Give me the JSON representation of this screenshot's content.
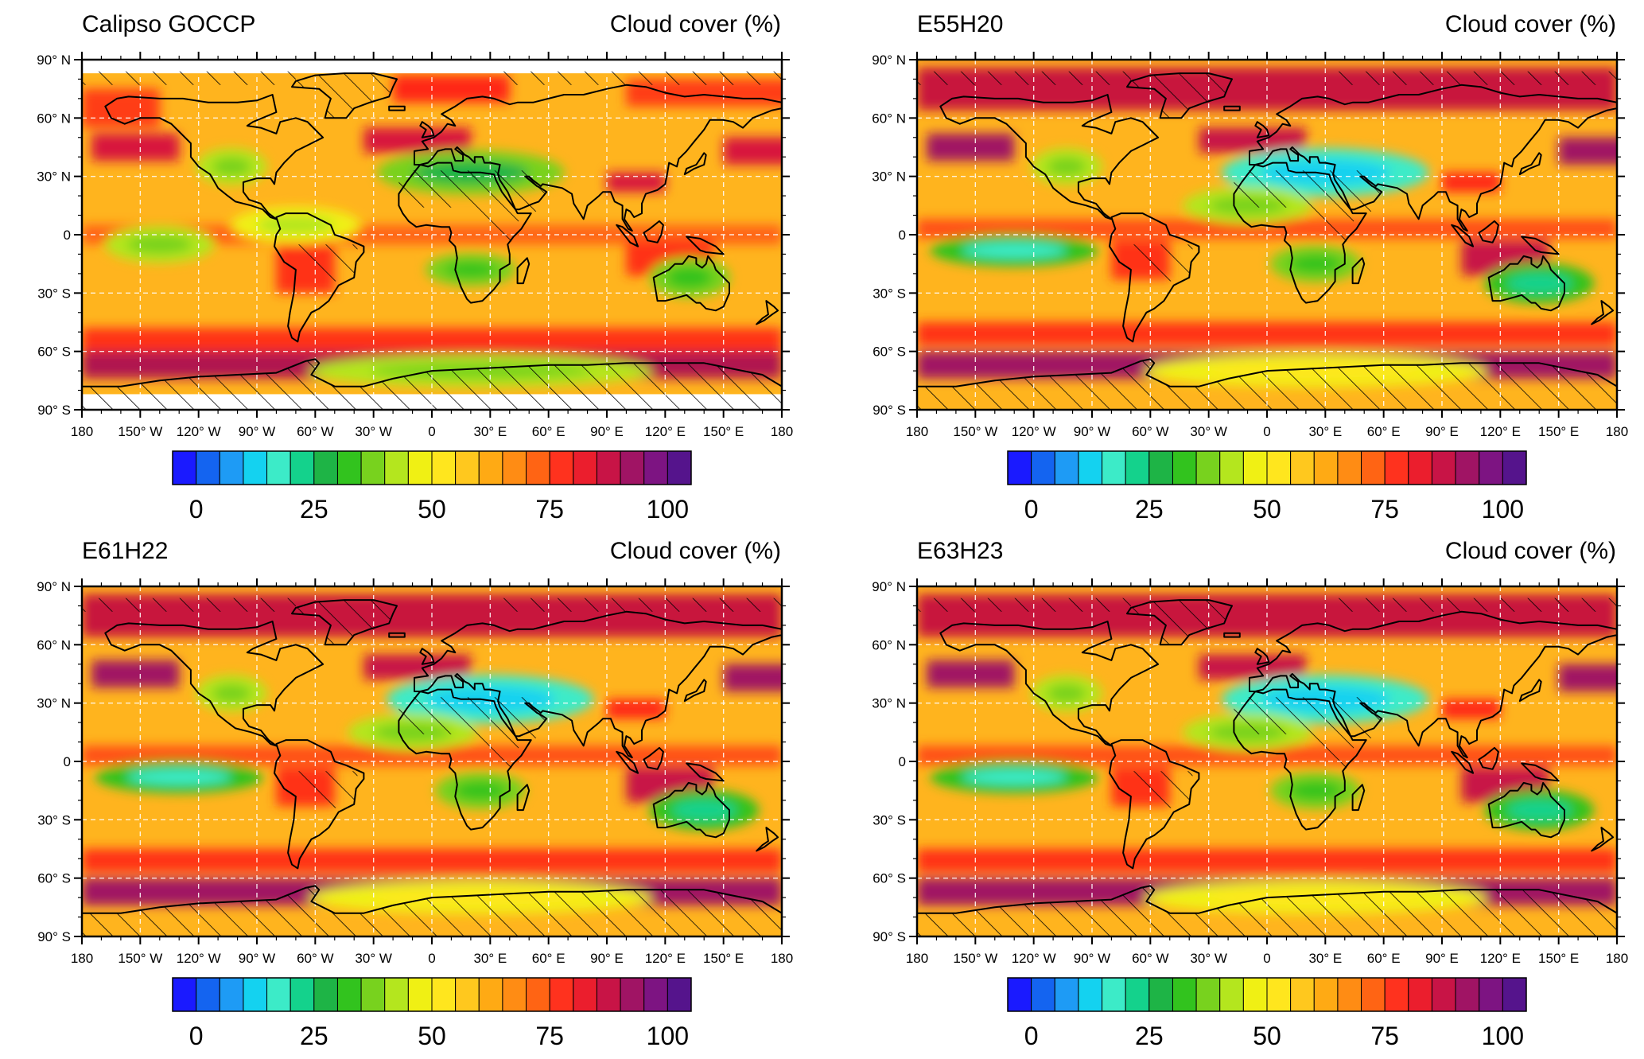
{
  "figure": {
    "units_label": "Cloud cover (%)",
    "panels": [
      {
        "id": "calipso",
        "title": "Calipso GOCCP"
      },
      {
        "id": "e55h20",
        "title": "E55H20"
      },
      {
        "id": "e61h22",
        "title": "E61H22"
      },
      {
        "id": "e63h23",
        "title": "E63H23"
      }
    ],
    "lat_ticks": [
      "90° N",
      "60° N",
      "30° N",
      "0",
      "30° S",
      "60° S",
      "90° S"
    ],
    "lon_ticks": [
      "180",
      "150° W",
      "120° W",
      "90° W",
      "60° W",
      "30° W",
      "0",
      "30° E",
      "60° E",
      "90° E",
      "120° E",
      "150° E",
      "180"
    ],
    "colorbar": {
      "labels": [
        "0",
        "25",
        "50",
        "75",
        "100"
      ],
      "label_values": [
        0,
        25,
        50,
        75,
        100
      ],
      "range": [
        -5,
        105
      ],
      "colors": [
        "#1a1aff",
        "#1464f0",
        "#1e9bf5",
        "#14d2f0",
        "#3cebc8",
        "#14d28c",
        "#1eb446",
        "#32c31e",
        "#78d21e",
        "#b4e61e",
        "#f0f014",
        "#ffe61e",
        "#ffc81e",
        "#ffaa14",
        "#ff8c14",
        "#ff6414",
        "#ff321e",
        "#eb1e2d",
        "#c81446",
        "#a01464",
        "#7d1482",
        "#55148c"
      ]
    }
  },
  "chart_data": {
    "type": "heatmap",
    "variable": "Cloud cover",
    "unit": "%",
    "lon_range": [
      -180,
      180
    ],
    "lat_range": [
      -90,
      90
    ],
    "grid": true,
    "panels": [
      "Calipso GOCCP",
      "E55H20",
      "E61H22",
      "E63H23"
    ],
    "colorbar_ticks": [
      0,
      25,
      50,
      75,
      100
    ]
  }
}
